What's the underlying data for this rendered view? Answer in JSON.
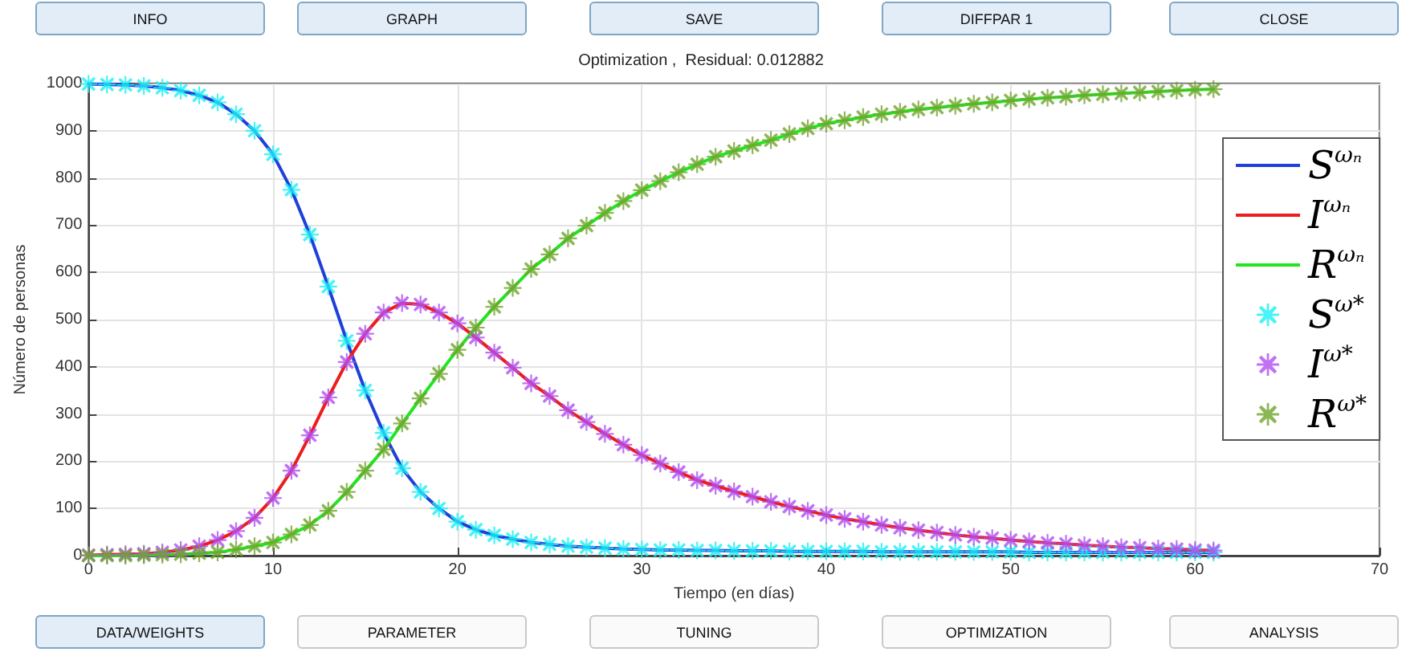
{
  "chart_data": {
    "type": "line",
    "title": "Optimization ,  Residual: 0.012882",
    "xlabel": "Tiempo (en días)",
    "ylabel": "Número de personas",
    "annotations": [
      "INFO",
      "GRAPH",
      "SAVE",
      "DIFFPAR 1",
      "CLOSE",
      "DATA/WEIGHTS",
      "PARAMETER",
      "TUNING",
      "OPTIMIZATION",
      "ANALYSIS"
    ],
    "x": [
      0,
      1,
      2,
      3,
      4,
      5,
      6,
      7,
      8,
      9,
      10,
      11,
      12,
      13,
      14,
      15,
      16,
      17,
      18,
      19,
      20,
      21,
      22,
      23,
      24,
      25,
      26,
      27,
      28,
      29,
      30,
      31,
      32,
      33,
      34,
      35,
      36,
      37,
      38,
      39,
      40,
      41,
      42,
      43,
      44,
      45,
      46,
      47,
      48,
      49,
      50,
      51,
      52,
      53,
      54,
      55,
      56,
      57,
      58,
      59,
      60,
      61
    ],
    "xlim": [
      0,
      70
    ],
    "xticks": [
      0,
      10,
      20,
      30,
      40,
      50,
      60,
      70
    ],
    "ylim": [
      0,
      1000
    ],
    "yticks": [
      0,
      100,
      200,
      300,
      400,
      500,
      600,
      700,
      800,
      900,
      1000
    ],
    "grid": true,
    "legend": "right",
    "marker": "none",
    "line_style": "solid",
    "series": [
      {
        "name": "S$^{ωₙ}$",
        "color": "#1f3fd9",
        "values": [
          999,
          998,
          997,
          995,
          991,
          985,
          975,
          960,
          935,
          900,
          850,
          775,
          680,
          570,
          455,
          350,
          260,
          185,
          135,
          100,
          72,
          55,
          43,
          35,
          28,
          24,
          20,
          18,
          16,
          14,
          13,
          12,
          12,
          11,
          11,
          10,
          10,
          10,
          9,
          9,
          9,
          9,
          9,
          8,
          8,
          8,
          8,
          8,
          8,
          8,
          8,
          7,
          7,
          7,
          7,
          7,
          7,
          7,
          7,
          7,
          7,
          7
        ]
      },
      {
        "name": "I$^{ωₙ}$",
        "color": "#ee1c1c",
        "values": [
          1,
          2,
          3,
          4,
          7,
          12,
          20,
          33,
          52,
          80,
          122,
          180,
          255,
          335,
          410,
          470,
          515,
          535,
          532,
          515,
          492,
          462,
          430,
          398,
          365,
          338,
          308,
          283,
          258,
          235,
          213,
          195,
          177,
          160,
          148,
          136,
          125,
          114,
          104,
          95,
          86,
          78,
          72,
          65,
          59,
          54,
          49,
          44,
          40,
          37,
          33,
          30,
          27,
          25,
          22,
          20,
          18,
          17,
          15,
          14,
          12,
          11
        ]
      },
      {
        "name": "R$^{ωₙ}$",
        "color": "#22e51e",
        "values": [
          0,
          0,
          0,
          1,
          2,
          3,
          5,
          7,
          13,
          20,
          28,
          45,
          65,
          95,
          135,
          180,
          225,
          280,
          333,
          385,
          436,
          483,
          527,
          567,
          607,
          638,
          672,
          699,
          726,
          751,
          774,
          793,
          812,
          829,
          845,
          857,
          869,
          880,
          893,
          905,
          915,
          922,
          929,
          935,
          940,
          945,
          949,
          953,
          957,
          960,
          964,
          967,
          970,
          972,
          975,
          977,
          979,
          981,
          983,
          985,
          987,
          988
        ]
      },
      {
        "name": "S$^{ω*}$",
        "type": "scatter",
        "marker": "star",
        "color": "#1cf0f5",
        "values": [
          999,
          998,
          997,
          995,
          991,
          985,
          975,
          960,
          935,
          900,
          850,
          775,
          680,
          570,
          455,
          350,
          260,
          185,
          135,
          100,
          72,
          55,
          43,
          35,
          28,
          24,
          20,
          18,
          16,
          14,
          13,
          12,
          12,
          11,
          11,
          10,
          10,
          10,
          9,
          9,
          9,
          9,
          9,
          8,
          8,
          8,
          8,
          8,
          8,
          8,
          8,
          7,
          7,
          7,
          7,
          7,
          7,
          7,
          7,
          7,
          7,
          7
        ]
      },
      {
        "name": "I$^{ω*}$",
        "type": "scatter",
        "marker": "star",
        "color": "#b04ef2",
        "values": [
          1,
          2,
          3,
          4,
          7,
          12,
          20,
          33,
          52,
          80,
          122,
          180,
          255,
          335,
          410,
          470,
          515,
          535,
          532,
          515,
          492,
          462,
          430,
          398,
          365,
          338,
          308,
          283,
          258,
          235,
          213,
          195,
          177,
          160,
          148,
          136,
          125,
          114,
          104,
          95,
          86,
          78,
          72,
          65,
          59,
          54,
          49,
          44,
          40,
          37,
          33,
          30,
          27,
          25,
          22,
          20,
          18,
          17,
          15,
          14,
          12,
          11
        ]
      },
      {
        "name": "R$^{ω*}$",
        "type": "scatter",
        "marker": "star",
        "color": "#6fa52c",
        "values": [
          0,
          0,
          0,
          1,
          2,
          3,
          5,
          7,
          13,
          20,
          28,
          45,
          65,
          95,
          135,
          180,
          225,
          280,
          333,
          385,
          436,
          483,
          527,
          567,
          607,
          638,
          672,
          699,
          726,
          751,
          774,
          793,
          812,
          829,
          845,
          857,
          869,
          880,
          893,
          905,
          915,
          922,
          929,
          935,
          940,
          945,
          949,
          953,
          957,
          960,
          964,
          967,
          970,
          972,
          975,
          977,
          979,
          981,
          983,
          985,
          987,
          988
        ]
      }
    ]
  }
}
